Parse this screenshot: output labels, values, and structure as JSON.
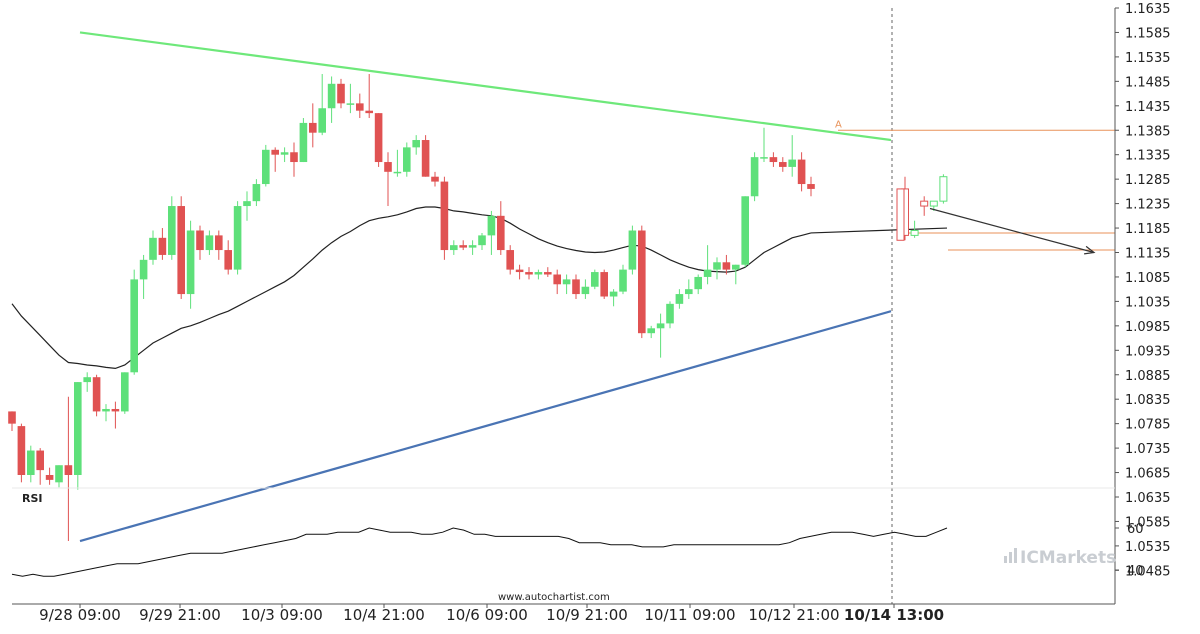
{
  "chart_data": {
    "type": "candlestick",
    "y_ticks": [
      "1.1635",
      "1.1585",
      "1.1535",
      "1.1485",
      "1.1435",
      "1.1385",
      "1.1335",
      "1.1285",
      "1.1235",
      "1.1185",
      "1.1135",
      "1.1085",
      "1.1035",
      "1.0985",
      "1.0935",
      "1.0885",
      "1.0835",
      "1.0785",
      "1.0735",
      "1.0685",
      "1.0635",
      "1.0585",
      "1.0535",
      "1.0485"
    ],
    "x_ticks": [
      {
        "label": "9/28 09:00",
        "bold": false
      },
      {
        "label": "9/29 21:00",
        "bold": false
      },
      {
        "label": "10/3 09:00",
        "bold": false
      },
      {
        "label": "10/4 21:00",
        "bold": false
      },
      {
        "label": "10/6 09:00",
        "bold": false
      },
      {
        "label": "10/9 21:00",
        "bold": false
      },
      {
        "label": "10/11 09:00",
        "bold": false
      },
      {
        "label": "10/12 21:00",
        "bold": false
      },
      {
        "label": "10/14 13:00",
        "bold": true
      }
    ],
    "candles": [
      [
        1.081,
        1.081,
        1.077,
        1.0785
      ],
      [
        1.078,
        1.0785,
        1.0665,
        1.068
      ],
      [
        1.068,
        1.074,
        1.0665,
        1.073
      ],
      [
        1.073,
        1.0735,
        1.066,
        1.069
      ],
      [
        1.068,
        1.0695,
        1.066,
        1.067
      ],
      [
        1.0665,
        1.07,
        1.0655,
        1.07
      ],
      [
        1.07,
        1.084,
        1.0545,
        1.068
      ],
      [
        1.068,
        1.087,
        1.065,
        1.087
      ],
      [
        1.087,
        1.089,
        1.085,
        1.088
      ],
      [
        1.088,
        1.0885,
        1.08,
        1.081
      ],
      [
        1.081,
        1.0825,
        1.079,
        1.0815
      ],
      [
        1.0815,
        1.083,
        1.0775,
        1.081
      ],
      [
        1.081,
        1.089,
        1.0805,
        1.089
      ],
      [
        1.089,
        1.11,
        1.0885,
        1.108
      ],
      [
        1.108,
        1.113,
        1.104,
        1.112
      ],
      [
        1.112,
        1.118,
        1.111,
        1.1165
      ],
      [
        1.1165,
        1.1185,
        1.112,
        1.113
      ],
      [
        1.113,
        1.125,
        1.112,
        1.123
      ],
      [
        1.123,
        1.125,
        1.104,
        1.105
      ],
      [
        1.105,
        1.12,
        1.102,
        1.118
      ],
      [
        1.118,
        1.119,
        1.112,
        1.114
      ],
      [
        1.114,
        1.118,
        1.113,
        1.117
      ],
      [
        1.117,
        1.118,
        1.112,
        1.114
      ],
      [
        1.114,
        1.116,
        1.109,
        1.11
      ],
      [
        1.11,
        1.124,
        1.109,
        1.123
      ],
      [
        1.123,
        1.126,
        1.12,
        1.124
      ],
      [
        1.124,
        1.1285,
        1.123,
        1.1275
      ],
      [
        1.1275,
        1.1355,
        1.127,
        1.1345
      ],
      [
        1.1345,
        1.135,
        1.13,
        1.1335
      ],
      [
        1.1335,
        1.135,
        1.132,
        1.134
      ],
      [
        1.134,
        1.136,
        1.129,
        1.132
      ],
      [
        1.132,
        1.141,
        1.132,
        1.14
      ],
      [
        1.14,
        1.144,
        1.135,
        1.138
      ],
      [
        1.138,
        1.15,
        1.1375,
        1.143
      ],
      [
        1.143,
        1.1495,
        1.14,
        1.148
      ],
      [
        1.148,
        1.149,
        1.143,
        1.144
      ],
      [
        1.144,
        1.148,
        1.142,
        1.144
      ],
      [
        1.144,
        1.146,
        1.141,
        1.1425
      ],
      [
        1.1425,
        1.15,
        1.141,
        1.142
      ],
      [
        1.142,
        1.142,
        1.131,
        1.132
      ],
      [
        1.132,
        1.134,
        1.123,
        1.13
      ],
      [
        1.13,
        1.1345,
        1.129,
        1.13
      ],
      [
        1.13,
        1.136,
        1.129,
        1.135
      ],
      [
        1.135,
        1.1375,
        1.1335,
        1.1365
      ],
      [
        1.1365,
        1.1375,
        1.129,
        1.129
      ],
      [
        1.129,
        1.13,
        1.127,
        1.128
      ],
      [
        1.128,
        1.129,
        1.112,
        1.114
      ],
      [
        1.114,
        1.116,
        1.113,
        1.115
      ],
      [
        1.115,
        1.116,
        1.114,
        1.1145
      ],
      [
        1.1145,
        1.116,
        1.113,
        1.115
      ],
      [
        1.115,
        1.1175,
        1.114,
        1.117
      ],
      [
        1.117,
        1.122,
        1.113,
        1.121
      ],
      [
        1.121,
        1.124,
        1.113,
        1.114
      ],
      [
        1.114,
        1.115,
        1.109,
        1.11
      ],
      [
        1.11,
        1.111,
        1.108,
        1.1095
      ],
      [
        1.1095,
        1.1105,
        1.108,
        1.109
      ],
      [
        1.109,
        1.11,
        1.108,
        1.1095
      ],
      [
        1.1095,
        1.1105,
        1.1085,
        1.109
      ],
      [
        1.109,
        1.11,
        1.105,
        1.107
      ],
      [
        1.107,
        1.109,
        1.105,
        1.108
      ],
      [
        1.108,
        1.109,
        1.104,
        1.105
      ],
      [
        1.105,
        1.108,
        1.104,
        1.1065
      ],
      [
        1.1065,
        1.11,
        1.106,
        1.1095
      ],
      [
        1.1095,
        1.11,
        1.104,
        1.1045
      ],
      [
        1.1045,
        1.106,
        1.1025,
        1.1055
      ],
      [
        1.1055,
        1.111,
        1.105,
        1.11
      ],
      [
        1.11,
        1.119,
        1.109,
        1.118
      ],
      [
        1.118,
        1.119,
        1.096,
        1.097
      ],
      [
        1.097,
        1.0985,
        1.096,
        1.098
      ],
      [
        1.098,
        1.101,
        1.092,
        1.099
      ],
      [
        1.099,
        1.1035,
        1.098,
        1.103
      ],
      [
        1.103,
        1.106,
        1.102,
        1.105
      ],
      [
        1.105,
        1.108,
        1.104,
        1.106
      ],
      [
        1.106,
        1.109,
        1.105,
        1.1085
      ],
      [
        1.1085,
        1.115,
        1.107,
        1.11
      ],
      [
        1.11,
        1.1125,
        1.108,
        1.1115
      ],
      [
        1.1115,
        1.113,
        1.109,
        1.11
      ],
      [
        1.11,
        1.111,
        1.107,
        1.111
      ],
      [
        1.111,
        1.125,
        1.1105,
        1.125
      ],
      [
        1.125,
        1.134,
        1.124,
        1.133
      ],
      [
        1.133,
        1.139,
        1.132,
        1.133
      ],
      [
        1.133,
        1.134,
        1.131,
        1.132
      ],
      [
        1.132,
        1.133,
        1.13,
        1.131
      ],
      [
        1.131,
        1.1375,
        1.129,
        1.1325
      ],
      [
        1.1325,
        1.134,
        1.126,
        1.1275
      ],
      [
        1.1275,
        1.129,
        1.125,
        1.1265
      ],
      [
        1.1265,
        1.129,
        1.116,
        1.117
      ],
      [
        1.117,
        1.12,
        1.1165,
        1.118
      ],
      [
        1.124,
        1.125,
        1.121,
        1.123
      ],
      [
        1.123,
        1.124,
        1.122,
        1.124
      ],
      [
        1.124,
        1.1295,
        1.1235,
        1.129
      ]
    ],
    "ma": [
      1.103,
      1.1005,
      1.0985,
      1.0965,
      1.0945,
      1.0925,
      1.091,
      1.0908,
      1.0905,
      1.0903,
      1.09,
      1.0898,
      1.0905,
      1.092,
      1.0935,
      1.095,
      1.096,
      1.097,
      1.098,
      1.0985,
      1.0992,
      1.1,
      1.1008,
      1.1015,
      1.1025,
      1.1035,
      1.1045,
      1.1055,
      1.1065,
      1.1075,
      1.1088,
      1.1105,
      1.1122,
      1.114,
      1.1155,
      1.1168,
      1.1178,
      1.119,
      1.12,
      1.1205,
      1.1208,
      1.1212,
      1.1218,
      1.1225,
      1.1228,
      1.1228,
      1.1225,
      1.122,
      1.1218,
      1.1215,
      1.1212,
      1.121,
      1.1205,
      1.1195,
      1.1183,
      1.1173,
      1.1163,
      1.1155,
      1.1148,
      1.1143,
      1.1139,
      1.1136,
      1.1135,
      1.1136,
      1.114,
      1.1145,
      1.115,
      1.1148,
      1.114,
      1.113,
      1.112,
      1.1112,
      1.1105,
      1.11,
      1.1097,
      1.1096,
      1.1095,
      1.1097,
      1.1105,
      1.112,
      1.1135,
      1.1145,
      1.1155,
      1.1165,
      1.117,
      1.1175
    ],
    "ma_forecast": [
      [
        1.1175,
        1.1185
      ]
    ],
    "channel_upper": {
      "from": [
        0,
        1.1585
      ],
      "to": [
        85,
        1.1365
      ]
    },
    "channel_lower": {
      "from": [
        0,
        1.0545
      ],
      "to": [
        85,
        1.1015
      ]
    },
    "forecast_arrow": {
      "from_value": 1.1225,
      "to_value": 1.1135
    },
    "levels": [
      {
        "value": 1.1385,
        "label": "A"
      },
      {
        "value": 1.1175,
        "label": ""
      },
      {
        "value": 1.114,
        "label": ""
      }
    ],
    "rsi": {
      "title": "RSI",
      "y_ticks": [
        "60",
        "40"
      ],
      "values": [
        38,
        37,
        38,
        37,
        37,
        38,
        39,
        40,
        41,
        42,
        43,
        43,
        43,
        44,
        45,
        46,
        47,
        48,
        48,
        48,
        48,
        49,
        50,
        51,
        52,
        53,
        54,
        55,
        57,
        57,
        57,
        58,
        58,
        58,
        60,
        59,
        58,
        58,
        58,
        57,
        57,
        58,
        60,
        59,
        57,
        57,
        56,
        56,
        56,
        56,
        56,
        56,
        56,
        55,
        53,
        53,
        53,
        52,
        52,
        52,
        51,
        51,
        51,
        52,
        52,
        52,
        52,
        52,
        52,
        52,
        52,
        52,
        52,
        52,
        53,
        55,
        56,
        57,
        58,
        58,
        58,
        57,
        56,
        57,
        58,
        57,
        56,
        56,
        58,
        60
      ]
    },
    "grid": false,
    "legend": "none"
  },
  "footer": {
    "source": "www.autochartist.com",
    "brand": "ICMarkets"
  }
}
